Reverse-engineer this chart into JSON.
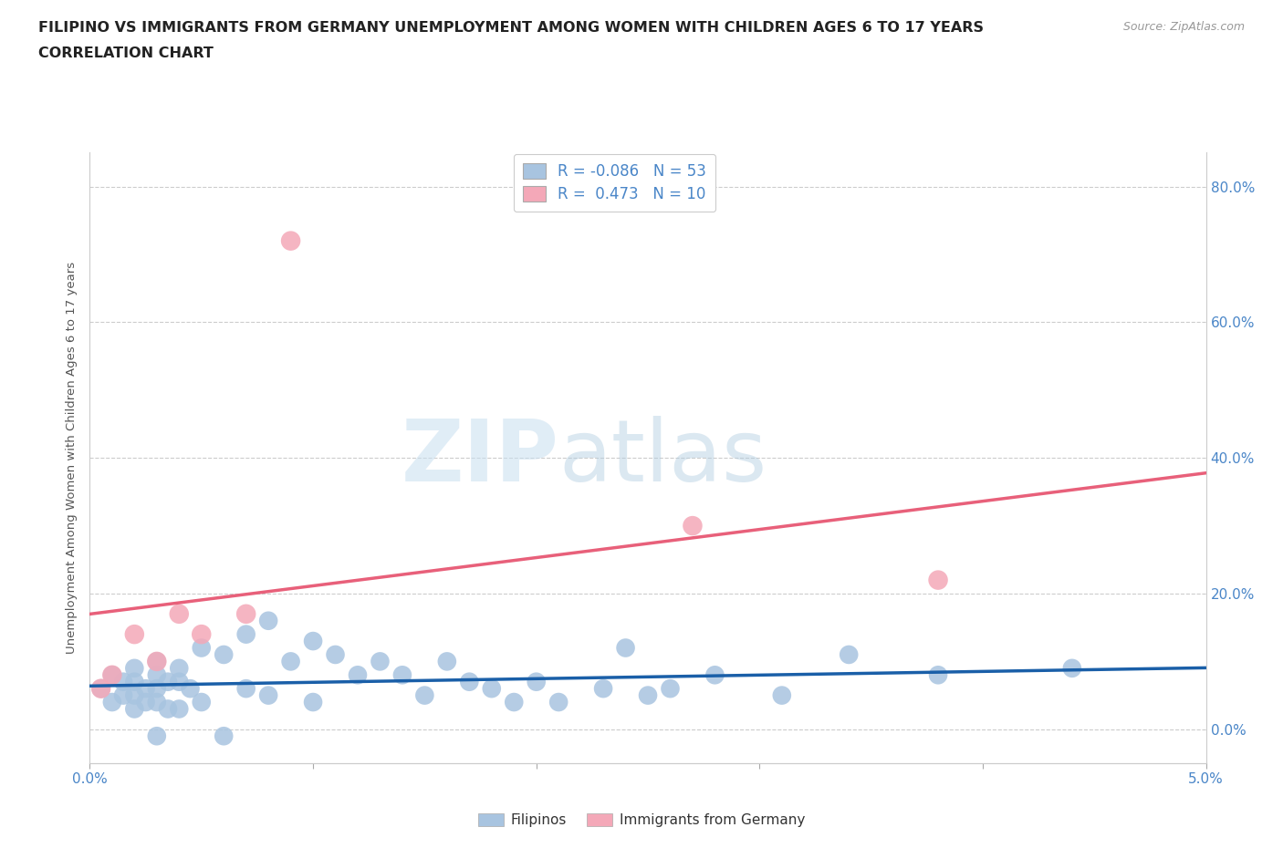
{
  "title_line1": "FILIPINO VS IMMIGRANTS FROM GERMANY UNEMPLOYMENT AMONG WOMEN WITH CHILDREN AGES 6 TO 17 YEARS",
  "title_line2": "CORRELATION CHART",
  "source": "Source: ZipAtlas.com",
  "ylabel": "Unemployment Among Women with Children Ages 6 to 17 years",
  "xlim": [
    0.0,
    0.05
  ],
  "ylim": [
    -0.05,
    0.85
  ],
  "yticks": [
    0.0,
    0.2,
    0.4,
    0.6,
    0.8
  ],
  "ytick_labels": [
    "0.0%",
    "20.0%",
    "40.0%",
    "60.0%",
    "80.0%"
  ],
  "xticks": [
    0.0,
    0.01,
    0.02,
    0.03,
    0.04,
    0.05
  ],
  "xtick_labels": [
    "0.0%",
    "",
    "",
    "",
    "",
    "5.0%"
  ],
  "r_filipino": -0.086,
  "n_filipino": 53,
  "r_germany": 0.473,
  "n_germany": 10,
  "filipino_color": "#a8c4e0",
  "germany_color": "#f4a8b8",
  "filipino_line_color": "#1a5fa8",
  "germany_line_color": "#e8607a",
  "watermark_zip": "ZIP",
  "watermark_atlas": "atlas",
  "legend_label_filipino": "Filipinos",
  "legend_label_germany": "Immigrants from Germany",
  "filipino_x": [
    0.0005,
    0.001,
    0.001,
    0.0015,
    0.0015,
    0.002,
    0.002,
    0.002,
    0.002,
    0.0025,
    0.0025,
    0.003,
    0.003,
    0.003,
    0.003,
    0.003,
    0.0035,
    0.0035,
    0.004,
    0.004,
    0.004,
    0.0045,
    0.005,
    0.005,
    0.006,
    0.006,
    0.007,
    0.007,
    0.008,
    0.008,
    0.009,
    0.01,
    0.01,
    0.011,
    0.012,
    0.013,
    0.014,
    0.015,
    0.016,
    0.017,
    0.018,
    0.019,
    0.02,
    0.021,
    0.023,
    0.024,
    0.025,
    0.026,
    0.028,
    0.031,
    0.034,
    0.038,
    0.044
  ],
  "filipino_y": [
    0.06,
    0.08,
    0.04,
    0.07,
    0.05,
    0.09,
    0.07,
    0.05,
    0.03,
    0.06,
    0.04,
    0.1,
    0.08,
    0.06,
    0.04,
    -0.01,
    0.07,
    0.03,
    0.09,
    0.07,
    0.03,
    0.06,
    0.12,
    0.04,
    0.11,
    -0.01,
    0.14,
    0.06,
    0.16,
    0.05,
    0.1,
    0.13,
    0.04,
    0.11,
    0.08,
    0.1,
    0.08,
    0.05,
    0.1,
    0.07,
    0.06,
    0.04,
    0.07,
    0.04,
    0.06,
    0.12,
    0.05,
    0.06,
    0.08,
    0.05,
    0.11,
    0.08,
    0.09
  ],
  "germany_x": [
    0.0005,
    0.001,
    0.002,
    0.003,
    0.004,
    0.005,
    0.007,
    0.009,
    0.027,
    0.038
  ],
  "germany_y": [
    0.06,
    0.08,
    0.14,
    0.1,
    0.17,
    0.14,
    0.17,
    0.72,
    0.3,
    0.22
  ],
  "grid_color": "#cccccc",
  "background_color": "#ffffff",
  "title_color": "#222222",
  "axis_label_color": "#555555",
  "tick_label_color": "#4a86c8",
  "right_tick_color": "#4a86c8"
}
